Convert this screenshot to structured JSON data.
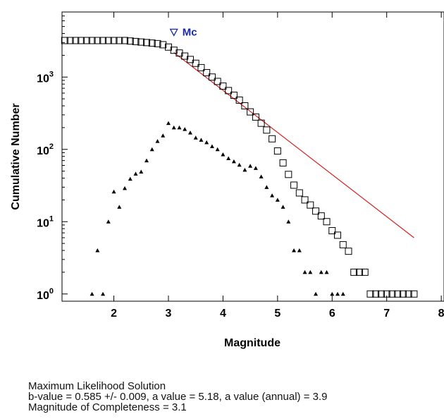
{
  "chart_data": {
    "type": "scatter",
    "xlabel": "Magnitude",
    "ylabel": "Cumulative Number",
    "xlim": [
      1.05,
      8.05
    ],
    "ylim_log10": [
      -0.1,
      3.9
    ],
    "y_scale": "log",
    "grid": false,
    "x_tick_labels": [
      "2",
      "3",
      "4",
      "5",
      "6",
      "7",
      "8"
    ],
    "y_tick_labels": [
      {
        "base": "10",
        "exp": "0"
      },
      {
        "base": "10",
        "exp": "1"
      },
      {
        "base": "10",
        "exp": "2"
      },
      {
        "base": "10",
        "exp": "3"
      }
    ],
    "series": [
      {
        "marker": "square",
        "color": "#000000",
        "x": [
          1.1,
          1.2,
          1.3,
          1.4,
          1.5,
          1.6,
          1.7,
          1.8,
          1.9,
          2.0,
          2.1,
          2.2,
          2.3,
          2.4,
          2.5,
          2.6,
          2.7,
          2.8,
          2.9,
          3.0,
          3.1,
          3.2,
          3.3,
          3.4,
          3.5,
          3.6,
          3.7,
          3.8,
          3.9,
          4.0,
          4.1,
          4.2,
          4.3,
          4.4,
          4.5,
          4.6,
          4.7,
          4.8,
          4.9,
          5.0,
          5.1,
          5.2,
          5.3,
          5.4,
          5.5,
          5.6,
          5.7,
          5.8,
          5.9,
          6.0,
          6.1,
          6.2,
          6.3,
          6.4,
          6.5,
          6.6,
          6.7,
          6.8,
          6.9,
          7.0,
          7.1,
          7.2,
          7.3,
          7.4,
          7.5
        ],
        "y": [
          3200,
          3200,
          3200,
          3200,
          3200,
          3200,
          3200,
          3200,
          3200,
          3200,
          3200,
          3200,
          3150,
          3100,
          3050,
          3000,
          2950,
          2900,
          2800,
          2600,
          2350,
          2150,
          1950,
          1750,
          1550,
          1350,
          1150,
          1000,
          870,
          750,
          650,
          560,
          480,
          400,
          330,
          280,
          230,
          185,
          140,
          95,
          65,
          45,
          32,
          25,
          20,
          17,
          14,
          12,
          10,
          7.5,
          6.5,
          4.8,
          3.9,
          2,
          2,
          2,
          1,
          1,
          1,
          1,
          1,
          1,
          1,
          1,
          1
        ]
      },
      {
        "marker": "triangle",
        "color": "#000000",
        "x": [
          1.6,
          1.8,
          1.7,
          1.9,
          2.0,
          2.1,
          2.2,
          2.3,
          2.4,
          2.5,
          2.6,
          2.7,
          2.8,
          2.9,
          3.0,
          3.1,
          3.2,
          3.3,
          3.4,
          3.5,
          3.6,
          3.7,
          3.8,
          3.9,
          4.0,
          4.1,
          4.2,
          4.3,
          4.4,
          4.5,
          4.6,
          4.7,
          4.8,
          4.9,
          5.0,
          5.1,
          5.2,
          5.3,
          5.4,
          5.5,
          5.6,
          5.7,
          5.8,
          5.9,
          6.0,
          6.1,
          6.2
        ],
        "y": [
          1,
          1,
          4,
          10,
          26,
          16,
          29,
          39,
          46,
          49,
          70,
          100,
          130,
          155,
          230,
          200,
          200,
          190,
          170,
          145,
          135,
          125,
          110,
          100,
          85,
          75,
          68,
          61,
          52,
          59,
          55,
          42,
          30,
          23,
          20,
          16,
          10,
          4,
          4,
          2,
          2,
          1,
          2,
          2,
          1,
          1,
          1
        ]
      },
      {
        "marker": "line",
        "color": "#d62020",
        "x": [
          3.1,
          7.5
        ],
        "y": [
          2187,
          6.0
        ]
      }
    ],
    "annotations": [
      {
        "text": "Mc",
        "marker": "inverted-triangle",
        "color": "#1a2aa8",
        "x": 3.1,
        "y": 4200
      }
    ]
  },
  "solution": {
    "title": "Maximum Likelihood Solution",
    "values": "b-value = 0.585 +/- 0.009,  a value = 5.18,  a value (annual) = 3.9",
    "completeness": "Magnitude of Completeness = 3.1"
  }
}
